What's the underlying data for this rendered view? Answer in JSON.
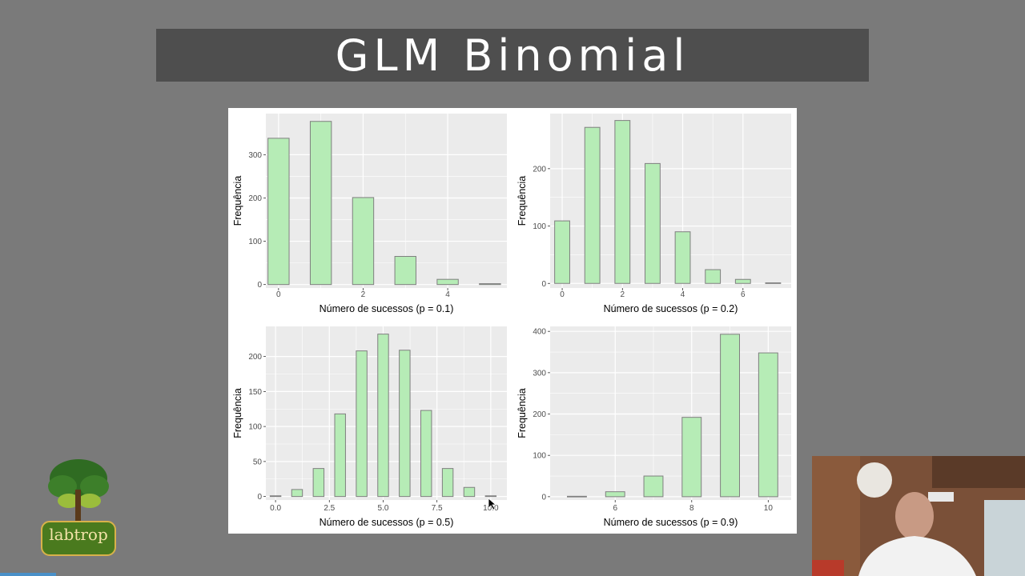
{
  "slide": {
    "title": "GLM Binomial"
  },
  "logo": {
    "text": "labtrop"
  },
  "colors": {
    "bar_fill": "#b6ecb6",
    "bar_stroke": "#7f7f7f",
    "panel_bg": "#ebebeb",
    "grid": "#ffffff"
  },
  "chart_data": [
    {
      "type": "bar",
      "xlabel": "Número de sucessos (p = 0.1)",
      "ylabel": "Frequência",
      "x": [
        0,
        1,
        2,
        3,
        4,
        5
      ],
      "values": [
        338,
        377,
        201,
        65,
        12,
        2
      ],
      "xlim": [
        -0.3,
        5.4
      ],
      "ylim": [
        -8,
        395
      ],
      "xticks": [
        0,
        2,
        4
      ],
      "xtick_labels": [
        "0",
        "2",
        "4"
      ],
      "yticks": [
        0,
        100,
        200,
        300
      ],
      "ytick_labels": [
        "0",
        "100",
        "200",
        "300"
      ],
      "bar_width": 0.5
    },
    {
      "type": "bar",
      "xlabel": "Número de sucessos (p = 0.2)",
      "ylabel": "Frequência",
      "x": [
        0,
        1,
        2,
        3,
        4,
        5,
        6,
        7
      ],
      "values": [
        109,
        272,
        284,
        209,
        90,
        24,
        7,
        1
      ],
      "xlim": [
        -0.4,
        7.6
      ],
      "ylim": [
        -8,
        296
      ],
      "xticks": [
        0,
        2,
        4,
        6
      ],
      "xtick_labels": [
        "0",
        "2",
        "4",
        "6"
      ],
      "yticks": [
        0,
        100,
        200
      ],
      "ytick_labels": [
        "0",
        "100",
        "200"
      ],
      "bar_width": 0.5
    },
    {
      "type": "bar",
      "xlabel": "Número de sucessos (p = 0.5)",
      "ylabel": "Frequência",
      "x": [
        0,
        1,
        2,
        3,
        4,
        5,
        6,
        7,
        8,
        9,
        10
      ],
      "values": [
        1,
        10,
        40,
        118,
        208,
        232,
        209,
        123,
        40,
        13,
        1
      ],
      "xlim": [
        -0.45,
        10.75
      ],
      "ylim": [
        -5,
        243
      ],
      "xticks": [
        0,
        2.5,
        5,
        7.5,
        10
      ],
      "xtick_labels": [
        "0.0",
        "2.5",
        "5.0",
        "7.5",
        "10.0"
      ],
      "yticks": [
        0,
        50,
        100,
        150,
        200
      ],
      "ytick_labels": [
        "0",
        "50",
        "100",
        "150",
        "200"
      ],
      "bar_width": 0.5
    },
    {
      "type": "bar",
      "xlabel": "Número de sucessos (p = 0.9)",
      "ylabel": "Frequência",
      "x": [
        5,
        6,
        7,
        8,
        9,
        10
      ],
      "values": [
        1,
        12,
        50,
        192,
        393,
        348
      ],
      "xlim": [
        4.3,
        10.6
      ],
      "ylim": [
        -8,
        412
      ],
      "xticks": [
        6,
        8,
        10
      ],
      "xtick_labels": [
        "6",
        "8",
        "10"
      ],
      "yticks": [
        0,
        100,
        200,
        300,
        400
      ],
      "ytick_labels": [
        "0",
        "100",
        "200",
        "300",
        "400"
      ],
      "bar_width": 0.5
    }
  ]
}
